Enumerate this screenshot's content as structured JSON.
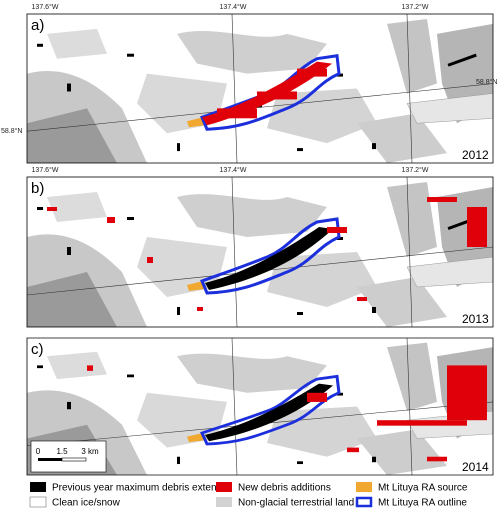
{
  "panels": [
    {
      "label": "a)",
      "year": "2012",
      "lon_labels": [
        "137.6°W",
        "137.4°W",
        "137.2°W"
      ],
      "lat_labels": [
        "58.8°N",
        "58.8°N"
      ]
    },
    {
      "label": "b)",
      "year": "2013",
      "lon_labels": [
        "137.6°W",
        "137.4°W",
        "137.2°W"
      ]
    },
    {
      "label": "c)",
      "year": "2014",
      "scale_bar": [
        "0",
        "1.5",
        "3 km"
      ]
    }
  ],
  "legend": [
    {
      "label": "Previous year maximum debris extent"
    },
    {
      "label": "Clean ice/snow"
    },
    {
      "label": "New debris additions"
    },
    {
      "label": "Non-glacial terrestrial land"
    },
    {
      "label": "Mt Lituya RA source"
    },
    {
      "label": "Mt Lituya RA outline"
    }
  ]
}
